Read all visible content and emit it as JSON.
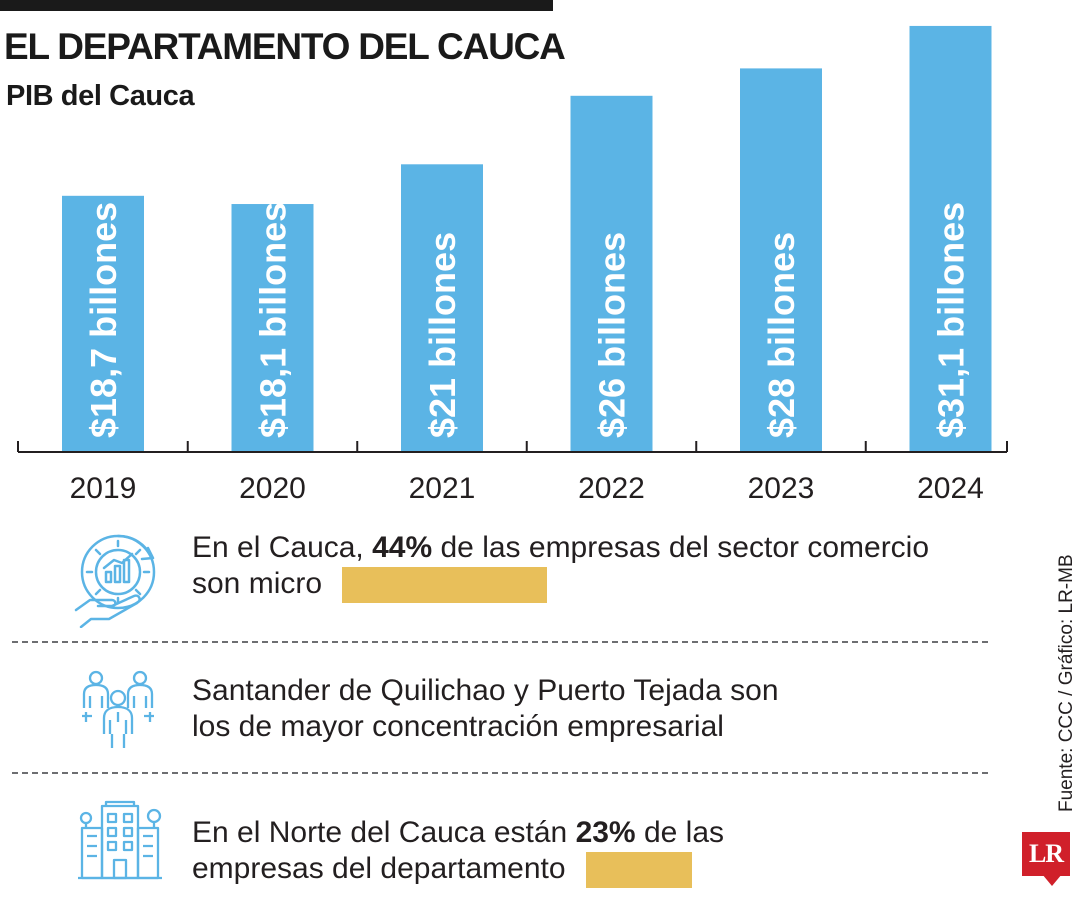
{
  "header": {
    "title": "EL DEPARTAMENTO DEL CAUCA",
    "subtitle": "PIB del Cauca"
  },
  "chart_data": {
    "type": "bar",
    "title": "PIB del Cauca",
    "categories": [
      "2019",
      "2020",
      "2021",
      "2022",
      "2023",
      "2024"
    ],
    "values": [
      18.7,
      18.1,
      21,
      26,
      28,
      31.1
    ],
    "data_labels": [
      "$18,7 billones",
      "$18,1 billones",
      "$21 billones",
      "$26 billones",
      "$28 billones",
      "$31,1 billones"
    ],
    "bar_color": "#5bb4e5",
    "xlabel": "",
    "ylabel": "",
    "grid": false
  },
  "facts": [
    {
      "icon": "gear-hand-chart-icon",
      "pre": "En el Cauca, ",
      "bold": "44%",
      "post": " de las empresas del sector comercio",
      "line2": "son micro"
    },
    {
      "icon": "people-group-icon",
      "line1": "Santander de Quilichao y Puerto Tejada son",
      "line2": "los de mayor concentración empresarial"
    },
    {
      "icon": "building-icon",
      "pre": "En el Norte del Cauca están ",
      "bold": "23%",
      "post": " de las",
      "line2": "empresas del departamento"
    }
  ],
  "footer": {
    "source": "Fuente: CCC / Gráfico: LR-MB",
    "logo": "LR"
  },
  "colors": {
    "accent_blue": "#5bb4e5",
    "highlight_gold": "#e8bf5a",
    "brand_red": "#d0202a"
  }
}
